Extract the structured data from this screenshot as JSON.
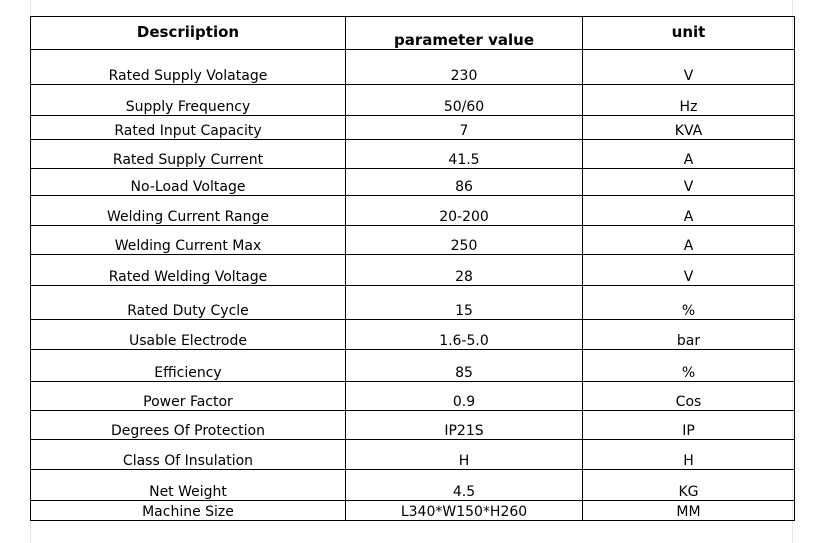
{
  "table": {
    "headers": [
      "Descriiption",
      "parameter value",
      "unit"
    ],
    "rows": [
      [
        "Rated Supply Volatage",
        "230",
        "V"
      ],
      [
        "Supply Frequency",
        "50/60",
        "Hz"
      ],
      [
        "Rated Input Capacity",
        "7",
        "KVA"
      ],
      [
        "Rated Supply Current",
        "41.5",
        "A"
      ],
      [
        "No-Load Voltage",
        "86",
        "V"
      ],
      [
        "Welding Current Range",
        "20-200",
        "A"
      ],
      [
        "Welding Current Max",
        "250",
        "A"
      ],
      [
        "Rated Welding Voltage",
        "28",
        "V"
      ],
      [
        "Rated Duty Cycle",
        "15",
        "%"
      ],
      [
        "Usable Electrode",
        "1.6-5.0",
        "bar"
      ],
      [
        "Efficiency",
        "85",
        "%"
      ],
      [
        "Power Factor",
        "0.9",
        "Cos"
      ],
      [
        "Degrees Of Protection",
        "IP21S",
        "IP"
      ],
      [
        "Class Of Insulation",
        "H",
        "H"
      ],
      [
        "Net Weight",
        "4.5",
        "KG"
      ],
      [
        "Machine Size",
        "L340*W150*H260",
        "MM"
      ]
    ]
  }
}
